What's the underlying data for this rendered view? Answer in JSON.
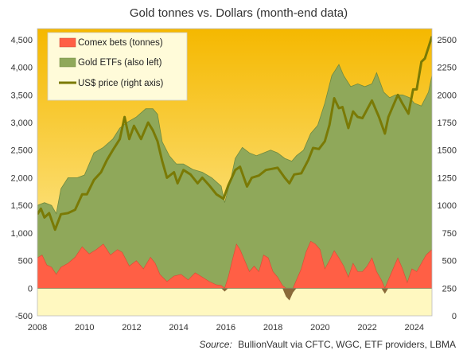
{
  "chart_data": {
    "type": "area",
    "title": "Gold tonnes vs. Dollars (month-end data)",
    "source_label": "Source:",
    "source": "BullionVault via CFTC, WGC, ETF providers, LBMA",
    "x_ticks": [
      "2008",
      "2010",
      "2012",
      "2014",
      "2016",
      "2018",
      "2020",
      "2022",
      "2024"
    ],
    "xlim": [
      2008,
      2024.75
    ],
    "left_axis": {
      "ylim": [
        -500,
        4700
      ],
      "ticks": [
        "-500",
        "0",
        "500",
        "1,000",
        "1,500",
        "2,000",
        "2,500",
        "3,000",
        "3,500",
        "4,000",
        "4,500"
      ]
    },
    "right_axis": {
      "ylim": [
        0,
        2600
      ],
      "ticks": [
        "0",
        "250",
        "500",
        "750",
        "1000",
        "1250",
        "1500",
        "1750",
        "2000",
        "2250",
        "2500"
      ]
    },
    "legend": {
      "placement": "top-left",
      "items": [
        {
          "label": "Comex bets (tonnes)",
          "kind": "area"
        },
        {
          "label": "Gold ETFs (also left)",
          "kind": "area"
        },
        {
          "label": "US$ price (right axis)",
          "kind": "line"
        }
      ]
    },
    "colors": {
      "comex": "#ff5f45",
      "comex_negative": "#8a6a3a",
      "etf": "#8fa85a",
      "etf_edge": "#6f8a3f",
      "price": "#7a7a05",
      "bg_top": "#f5b800",
      "bg_bottom": "#fff3b0",
      "negative_zone": "#fff8c0"
    },
    "series": [
      {
        "name": "Comex bets (tonnes)",
        "axis": "left",
        "points": [
          [
            2008.0,
            550
          ],
          [
            2008.2,
            600
          ],
          [
            2008.4,
            420
          ],
          [
            2008.6,
            380
          ],
          [
            2008.8,
            250
          ],
          [
            2009.0,
            380
          ],
          [
            2009.3,
            450
          ],
          [
            2009.6,
            560
          ],
          [
            2009.9,
            750
          ],
          [
            2010.2,
            620
          ],
          [
            2010.5,
            700
          ],
          [
            2010.8,
            800
          ],
          [
            2011.1,
            600
          ],
          [
            2011.4,
            700
          ],
          [
            2011.6,
            650
          ],
          [
            2011.9,
            400
          ],
          [
            2012.2,
            500
          ],
          [
            2012.5,
            350
          ],
          [
            2012.8,
            560
          ],
          [
            2013.0,
            450
          ],
          [
            2013.2,
            250
          ],
          [
            2013.5,
            120
          ],
          [
            2013.8,
            220
          ],
          [
            2014.1,
            250
          ],
          [
            2014.4,
            150
          ],
          [
            2014.7,
            280
          ],
          [
            2015.0,
            200
          ],
          [
            2015.3,
            120
          ],
          [
            2015.6,
            60
          ],
          [
            2015.8,
            50
          ],
          [
            2015.95,
            -60
          ],
          [
            2016.1,
            200
          ],
          [
            2016.3,
            550
          ],
          [
            2016.45,
            800
          ],
          [
            2016.6,
            700
          ],
          [
            2016.8,
            500
          ],
          [
            2017.0,
            300
          ],
          [
            2017.2,
            400
          ],
          [
            2017.4,
            300
          ],
          [
            2017.6,
            600
          ],
          [
            2017.8,
            550
          ],
          [
            2018.0,
            300
          ],
          [
            2018.2,
            200
          ],
          [
            2018.4,
            50
          ],
          [
            2018.55,
            -150
          ],
          [
            2018.7,
            -220
          ],
          [
            2018.85,
            -80
          ],
          [
            2019.0,
            150
          ],
          [
            2019.2,
            350
          ],
          [
            2019.4,
            650
          ],
          [
            2019.6,
            850
          ],
          [
            2019.8,
            800
          ],
          [
            2020.0,
            700
          ],
          [
            2020.2,
            350
          ],
          [
            2020.4,
            500
          ],
          [
            2020.6,
            680
          ],
          [
            2020.8,
            550
          ],
          [
            2021.0,
            400
          ],
          [
            2021.2,
            200
          ],
          [
            2021.4,
            450
          ],
          [
            2021.6,
            300
          ],
          [
            2021.8,
            300
          ],
          [
            2022.0,
            400
          ],
          [
            2022.2,
            550
          ],
          [
            2022.4,
            300
          ],
          [
            2022.6,
            150
          ],
          [
            2022.75,
            -100
          ],
          [
            2022.9,
            150
          ],
          [
            2023.1,
            350
          ],
          [
            2023.3,
            550
          ],
          [
            2023.5,
            350
          ],
          [
            2023.7,
            100
          ],
          [
            2023.9,
            350
          ],
          [
            2024.1,
            300
          ],
          [
            2024.3,
            450
          ],
          [
            2024.5,
            600
          ],
          [
            2024.75,
            700
          ]
        ]
      },
      {
        "name": "Gold ETFs (also left)",
        "axis": "left",
        "points": [
          [
            2008.0,
            1500
          ],
          [
            2008.3,
            1550
          ],
          [
            2008.6,
            1500
          ],
          [
            2008.8,
            1350
          ],
          [
            2009.0,
            1800
          ],
          [
            2009.3,
            2000
          ],
          [
            2009.7,
            2000
          ],
          [
            2010.0,
            2050
          ],
          [
            2010.4,
            2450
          ],
          [
            2010.8,
            2550
          ],
          [
            2011.2,
            2700
          ],
          [
            2011.5,
            2900
          ],
          [
            2011.8,
            3000
          ],
          [
            2012.2,
            3100
          ],
          [
            2012.6,
            3250
          ],
          [
            2012.9,
            3250
          ],
          [
            2013.1,
            3150
          ],
          [
            2013.3,
            2650
          ],
          [
            2013.6,
            2400
          ],
          [
            2013.9,
            2250
          ],
          [
            2014.2,
            2250
          ],
          [
            2014.6,
            2150
          ],
          [
            2015.0,
            2100
          ],
          [
            2015.4,
            2000
          ],
          [
            2015.8,
            1850
          ],
          [
            2015.95,
            1550
          ],
          [
            2016.2,
            1950
          ],
          [
            2016.4,
            2350
          ],
          [
            2016.7,
            2550
          ],
          [
            2017.0,
            2450
          ],
          [
            2017.3,
            2400
          ],
          [
            2017.6,
            2450
          ],
          [
            2017.9,
            2500
          ],
          [
            2018.2,
            2450
          ],
          [
            2018.5,
            2350
          ],
          [
            2018.8,
            2300
          ],
          [
            2019.0,
            2400
          ],
          [
            2019.3,
            2500
          ],
          [
            2019.6,
            2800
          ],
          [
            2019.9,
            2950
          ],
          [
            2020.2,
            3350
          ],
          [
            2020.5,
            3850
          ],
          [
            2020.8,
            4050
          ],
          [
            2021.0,
            3850
          ],
          [
            2021.3,
            3650
          ],
          [
            2021.6,
            3700
          ],
          [
            2021.9,
            3650
          ],
          [
            2022.2,
            3700
          ],
          [
            2022.4,
            3900
          ],
          [
            2022.7,
            3550
          ],
          [
            2022.95,
            3450
          ],
          [
            2023.2,
            3500
          ],
          [
            2023.5,
            3500
          ],
          [
            2023.8,
            3450
          ],
          [
            2024.0,
            3350
          ],
          [
            2024.3,
            3300
          ],
          [
            2024.6,
            3550
          ],
          [
            2024.75,
            3850
          ]
        ]
      },
      {
        "name": "US$ price (right axis)",
        "axis": "right",
        "points": [
          [
            2008.0,
            920
          ],
          [
            2008.15,
            970
          ],
          [
            2008.3,
            890
          ],
          [
            2008.5,
            930
          ],
          [
            2008.75,
            780
          ],
          [
            2009.0,
            920
          ],
          [
            2009.3,
            930
          ],
          [
            2009.6,
            960
          ],
          [
            2009.9,
            1100
          ],
          [
            2010.1,
            1100
          ],
          [
            2010.4,
            1230
          ],
          [
            2010.7,
            1300
          ],
          [
            2010.95,
            1410
          ],
          [
            2011.2,
            1500
          ],
          [
            2011.5,
            1600
          ],
          [
            2011.7,
            1800
          ],
          [
            2011.9,
            1600
          ],
          [
            2012.1,
            1720
          ],
          [
            2012.4,
            1600
          ],
          [
            2012.7,
            1750
          ],
          [
            2012.9,
            1680
          ],
          [
            2013.1,
            1580
          ],
          [
            2013.3,
            1400
          ],
          [
            2013.5,
            1250
          ],
          [
            2013.8,
            1300
          ],
          [
            2013.95,
            1200
          ],
          [
            2014.2,
            1320
          ],
          [
            2014.5,
            1280
          ],
          [
            2014.8,
            1200
          ],
          [
            2015.0,
            1250
          ],
          [
            2015.3,
            1180
          ],
          [
            2015.6,
            1100
          ],
          [
            2015.9,
            1060
          ],
          [
            2016.1,
            1180
          ],
          [
            2016.4,
            1320
          ],
          [
            2016.6,
            1350
          ],
          [
            2016.9,
            1170
          ],
          [
            2017.1,
            1250
          ],
          [
            2017.4,
            1270
          ],
          [
            2017.7,
            1320
          ],
          [
            2017.95,
            1330
          ],
          [
            2018.2,
            1340
          ],
          [
            2018.5,
            1250
          ],
          [
            2018.7,
            1200
          ],
          [
            2018.9,
            1280
          ],
          [
            2019.2,
            1290
          ],
          [
            2019.5,
            1410
          ],
          [
            2019.7,
            1520
          ],
          [
            2019.95,
            1510
          ],
          [
            2020.2,
            1580
          ],
          [
            2020.4,
            1730
          ],
          [
            2020.6,
            1970
          ],
          [
            2020.8,
            1880
          ],
          [
            2020.95,
            1890
          ],
          [
            2021.2,
            1700
          ],
          [
            2021.4,
            1850
          ],
          [
            2021.6,
            1800
          ],
          [
            2021.8,
            1790
          ],
          [
            2022.2,
            1950
          ],
          [
            2022.5,
            1800
          ],
          [
            2022.75,
            1650
          ],
          [
            2022.9,
            1800
          ],
          [
            2023.1,
            1900
          ],
          [
            2023.3,
            2000
          ],
          [
            2023.5,
            1920
          ],
          [
            2023.75,
            1830
          ],
          [
            2023.95,
            2050
          ],
          [
            2024.1,
            2050
          ],
          [
            2024.3,
            2300
          ],
          [
            2024.45,
            2330
          ],
          [
            2024.6,
            2430
          ],
          [
            2024.75,
            2530
          ]
        ]
      }
    ]
  }
}
